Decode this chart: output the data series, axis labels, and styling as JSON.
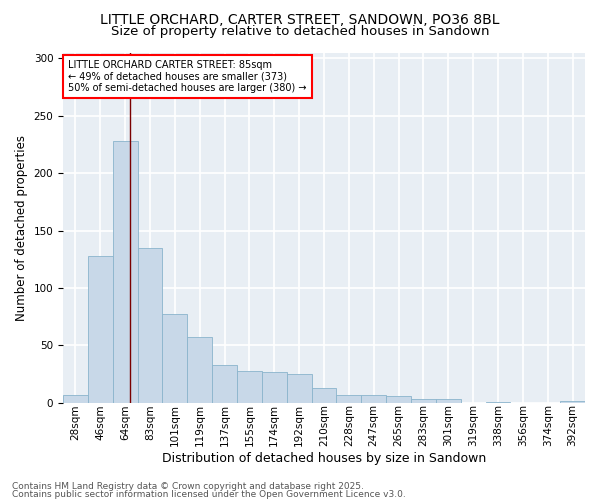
{
  "title1": "LITTLE ORCHARD, CARTER STREET, SANDOWN, PO36 8BL",
  "title2": "Size of property relative to detached houses in Sandown",
  "xlabel": "Distribution of detached houses by size in Sandown",
  "ylabel": "Number of detached properties",
  "categories": [
    "28sqm",
    "46sqm",
    "64sqm",
    "83sqm",
    "101sqm",
    "119sqm",
    "137sqm",
    "155sqm",
    "174sqm",
    "192sqm",
    "210sqm",
    "228sqm",
    "247sqm",
    "265sqm",
    "283sqm",
    "301sqm",
    "319sqm",
    "338sqm",
    "356sqm",
    "374sqm",
    "392sqm"
  ],
  "values": [
    7,
    128,
    228,
    135,
    77,
    57,
    33,
    28,
    27,
    25,
    13,
    7,
    7,
    6,
    3,
    3,
    0,
    1,
    0,
    0,
    2
  ],
  "bar_color": "#c8d8e8",
  "bar_edge_color": "#8ab4cc",
  "vline_x": 2.2,
  "annotation_text": "LITTLE ORCHARD CARTER STREET: 85sqm\n← 49% of detached houses are smaller (373)\n50% of semi-detached houses are larger (380) →",
  "annotation_box_facecolor": "white",
  "annotation_box_edgecolor": "red",
  "vline_color": "#7a0000",
  "footer1": "Contains HM Land Registry data © Crown copyright and database right 2025.",
  "footer2": "Contains public sector information licensed under the Open Government Licence v3.0.",
  "ylim": [
    0,
    305
  ],
  "fig_bg_color": "white",
  "plot_bg_color": "#e8eef4",
  "grid_color": "white",
  "yticks": [
    0,
    50,
    100,
    150,
    200,
    250,
    300
  ],
  "title_fontsize": 10,
  "subtitle_fontsize": 9.5,
  "tick_fontsize": 7.5,
  "ylabel_fontsize": 8.5,
  "xlabel_fontsize": 9,
  "annotation_fontsize": 7,
  "footer_fontsize": 6.5
}
